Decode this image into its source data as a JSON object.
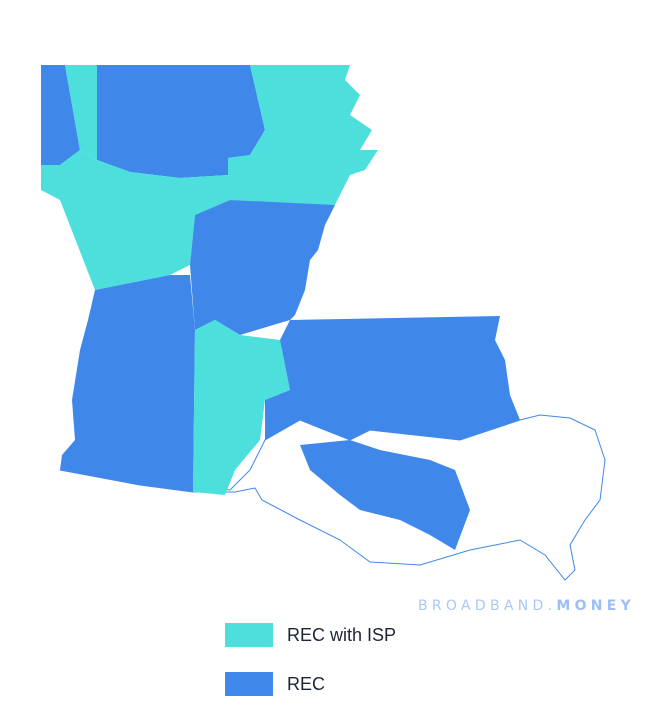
{
  "watermark": {
    "part1": "BROADBAND.",
    "part2": "MONEY"
  },
  "legend": [
    {
      "label": "REC with ISP",
      "color": "#4ddfdc"
    },
    {
      "label": "REC",
      "color": "#3f88ea"
    }
  ],
  "colors": {
    "outline": "#3f88ea",
    "background": "#ffffff"
  }
}
